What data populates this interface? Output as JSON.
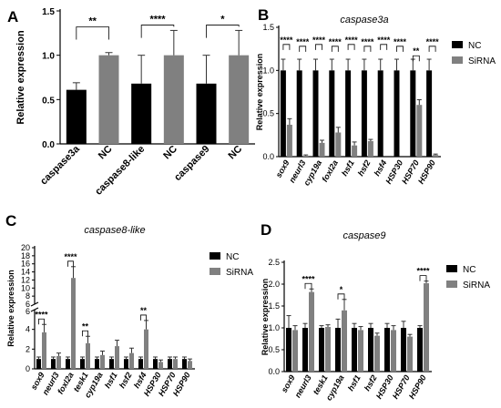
{
  "chart_data": [
    {
      "panel_letter": "A",
      "type": "bar",
      "title": "",
      "ylabel": "Relative expression",
      "ylim": [
        0,
        1.5
      ],
      "yticks": [
        "0.0",
        "0.5",
        "1.0",
        "1.5"
      ],
      "categories": [
        "caspase3a",
        "NC",
        "caspase8-like",
        "NC",
        "caspase9",
        "NC"
      ],
      "values": [
        0.61,
        1.0,
        0.68,
        1.0,
        0.68,
        1.0
      ],
      "errors": [
        0.08,
        0.03,
        0.32,
        0.28,
        0.32,
        0.28
      ],
      "bar_colors": [
        "#000000",
        "#808080",
        "#000000",
        "#808080",
        "#000000",
        "#808080"
      ],
      "significance": [
        {
          "between": [
            0,
            1
          ],
          "label": "**",
          "level": 1.32
        },
        {
          "between": [
            2,
            3
          ],
          "label": "****",
          "level": 1.34
        },
        {
          "between": [
            4,
            5
          ],
          "label": "*",
          "level": 1.34
        }
      ]
    },
    {
      "panel_letter": "B",
      "type": "bar",
      "title": "caspase3a",
      "ylabel": "Relative expression",
      "ylim": [
        0,
        1.5
      ],
      "yticks": [
        "0.0",
        "0.5",
        "1.0",
        "1.5"
      ],
      "categories": [
        "sox9",
        "neurl3",
        "cyp19a",
        "foxl2a",
        "hsf1",
        "hsf2",
        "hsf4",
        "HSP30",
        "HSP70",
        "HSP90"
      ],
      "series": [
        {
          "name": "NC",
          "color": "#000000",
          "values": [
            1.0,
            1.0,
            1.0,
            1.0,
            1.0,
            1.0,
            1.0,
            1.0,
            1.0,
            1.0
          ],
          "errors": [
            0.13,
            0.13,
            0.13,
            0.13,
            0.13,
            0.13,
            0.13,
            0.13,
            0.13,
            0.13
          ]
        },
        {
          "name": "SiRNA",
          "color": "#808080",
          "values": [
            0.37,
            0.01,
            0.16,
            0.28,
            0.13,
            0.18,
            0.0,
            0.0,
            0.6,
            0.02
          ],
          "errors": [
            0.07,
            0.01,
            0.03,
            0.06,
            0.04,
            0.02,
            0.0,
            0.0,
            0.06,
            0.01
          ]
        }
      ],
      "significance": [
        "****",
        "****",
        "****",
        "****",
        "****",
        "****",
        "****",
        "****",
        "**",
        "****"
      ],
      "legend": "top-right"
    },
    {
      "panel_letter": "C",
      "type": "bar",
      "title": "caspase8-like",
      "ylabel": "Relative expression",
      "axis_break": {
        "lower": [
          0,
          6
        ],
        "upper": [
          6,
          20
        ]
      },
      "yticks": [
        "0",
        "2",
        "4",
        "6",
        "8",
        "10",
        "12",
        "14",
        "16",
        "18",
        "20"
      ],
      "categories": [
        "sox9",
        "neurl3",
        "foxl2a",
        "tesk1",
        "cyp19a",
        "hsf1",
        "hsf2",
        "hsf4",
        "HSP30",
        "HSP70",
        "HSP90"
      ],
      "series": [
        {
          "name": "NC",
          "color": "#000000",
          "values": [
            1.0,
            1.0,
            1.0,
            1.0,
            1.0,
            1.0,
            1.0,
            1.0,
            1.0,
            1.0,
            1.0
          ],
          "errors": [
            0.2,
            0.2,
            0.2,
            0.2,
            0.2,
            0.2,
            0.2,
            0.2,
            0.2,
            0.2,
            0.2
          ]
        },
        {
          "name": "SiRNA",
          "color": "#808080",
          "values": [
            3.7,
            1.3,
            12.5,
            2.6,
            1.4,
            2.3,
            1.6,
            4.0,
            0.7,
            1.0,
            0.8
          ],
          "errors": [
            0.8,
            0.3,
            2.8,
            0.7,
            0.4,
            0.6,
            0.5,
            0.9,
            0.2,
            0.2,
            0.2
          ]
        }
      ],
      "significance": [
        "****",
        "",
        "****",
        "**",
        "",
        "",
        "",
        "**",
        "",
        "",
        ""
      ],
      "legend": "top-right"
    },
    {
      "panel_letter": "D",
      "type": "bar",
      "title": "caspase9",
      "ylabel": "Relative expression",
      "ylim": [
        0,
        2.5
      ],
      "yticks": [
        "0.0",
        "0.5",
        "1.0",
        "1.5",
        "2.0",
        "2.5"
      ],
      "categories": [
        "sox9",
        "neurl3",
        "tesk1",
        "cyp19a",
        "hsf1",
        "hsf2",
        "HSP30",
        "HSP70",
        "HSP90"
      ],
      "series": [
        {
          "name": "NC",
          "color": "#000000",
          "values": [
            1.0,
            1.0,
            1.0,
            1.0,
            1.0,
            1.0,
            1.0,
            1.0,
            1.0
          ],
          "errors": [
            0.28,
            0.1,
            0.05,
            0.2,
            0.1,
            0.1,
            0.1,
            0.15,
            0.05
          ]
        },
        {
          "name": "SiRNA",
          "color": "#808080",
          "values": [
            0.95,
            1.82,
            1.02,
            1.4,
            0.95,
            0.82,
            0.95,
            0.8,
            2.02
          ],
          "errors": [
            0.1,
            0.07,
            0.05,
            0.25,
            0.08,
            0.06,
            0.1,
            0.05,
            0.05
          ]
        }
      ],
      "significance": [
        "",
        "****",
        "",
        "*",
        "",
        "",
        "",
        "",
        "****"
      ],
      "legend": "top-right"
    }
  ]
}
